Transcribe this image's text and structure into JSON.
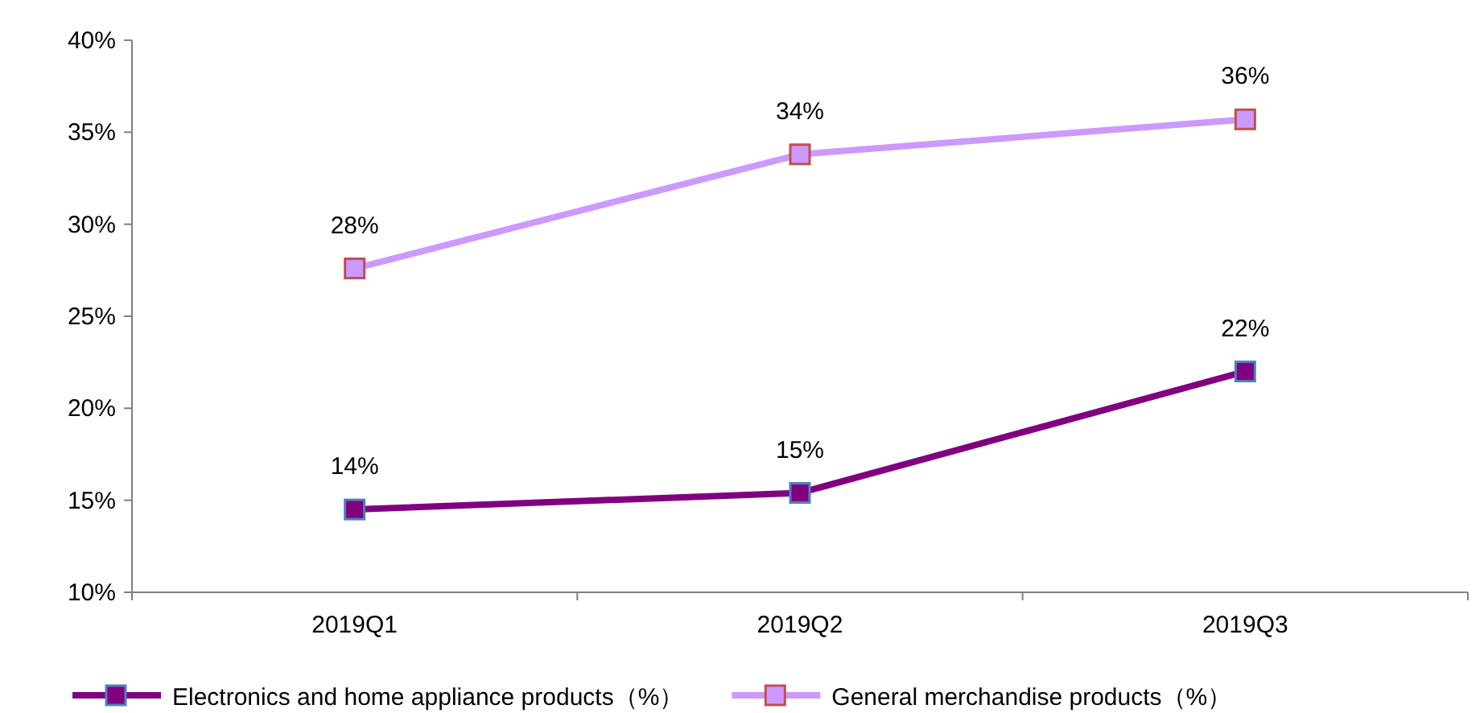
{
  "chart_data": {
    "type": "line",
    "categories": [
      "2019Q1",
      "2019Q2",
      "2019Q3"
    ],
    "series": [
      {
        "name": "Electronics and home appliance products（%）",
        "color": "#800080",
        "values": [
          14.5,
          15.4,
          22.0
        ],
        "value_labels": [
          "14%",
          "15%",
          "22%"
        ]
      },
      {
        "name": "General merchandise products（%）",
        "color": "#cc99ff",
        "values": [
          27.6,
          33.8,
          35.7
        ],
        "value_labels": [
          "28%",
          "34%",
          "36%"
        ]
      }
    ],
    "ylim": [
      10,
      40
    ],
    "yticks": [
      {
        "value": 10,
        "label": "10%"
      },
      {
        "value": 15,
        "label": "15%"
      },
      {
        "value": 20,
        "label": "20%"
      },
      {
        "value": 25,
        "label": "25%"
      },
      {
        "value": 30,
        "label": "30%"
      },
      {
        "value": 35,
        "label": "35%"
      },
      {
        "value": 40,
        "label": "40%"
      }
    ],
    "marker": "square",
    "line_style": "solid",
    "grid": false,
    "legend": "bottom"
  }
}
